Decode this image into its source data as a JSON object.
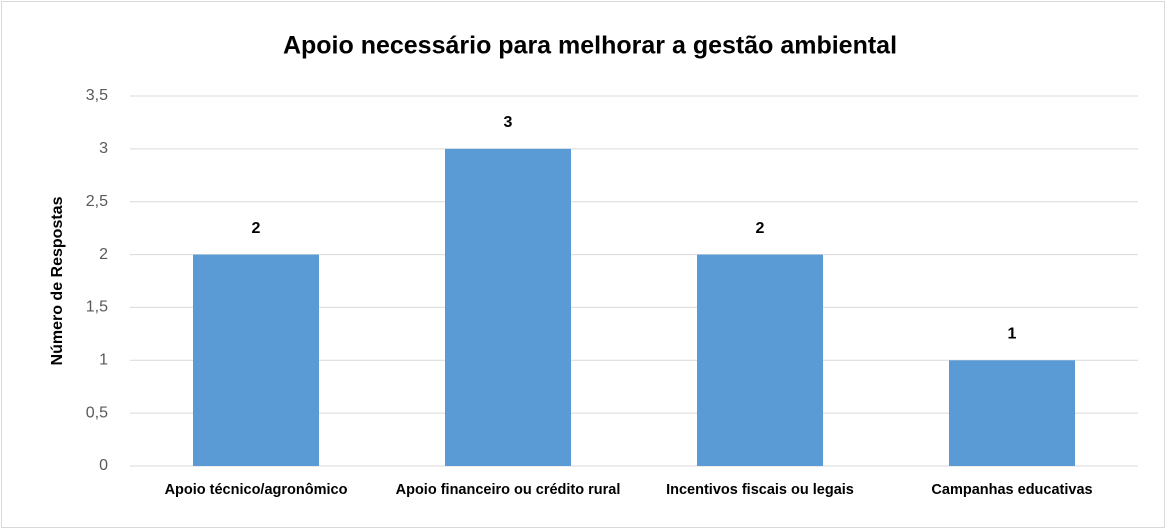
{
  "chart_data": {
    "type": "bar",
    "title": "Apoio necessário para melhorar a gestão ambiental",
    "y_label": "Número de Respostas",
    "categories": [
      "Apoio técnico/agronômico",
      "Apoio financeiro ou crédito rural",
      "Incentivos fiscais ou legais",
      "Campanhas educativas"
    ],
    "values": [
      2,
      3,
      2,
      1
    ],
    "color": "#5b9bd5",
    "ylim": [
      0,
      3.5
    ],
    "yticks": [
      0,
      {
        "value": 0.5,
        "label": "0,5"
      },
      1,
      {
        "value": 1.5,
        "label": "1,5"
      },
      2,
      {
        "value": 2.5,
        "label": "2,5"
      },
      3,
      {
        "value": 3.5,
        "label": "3,5"
      }
    ],
    "grid": true
  }
}
